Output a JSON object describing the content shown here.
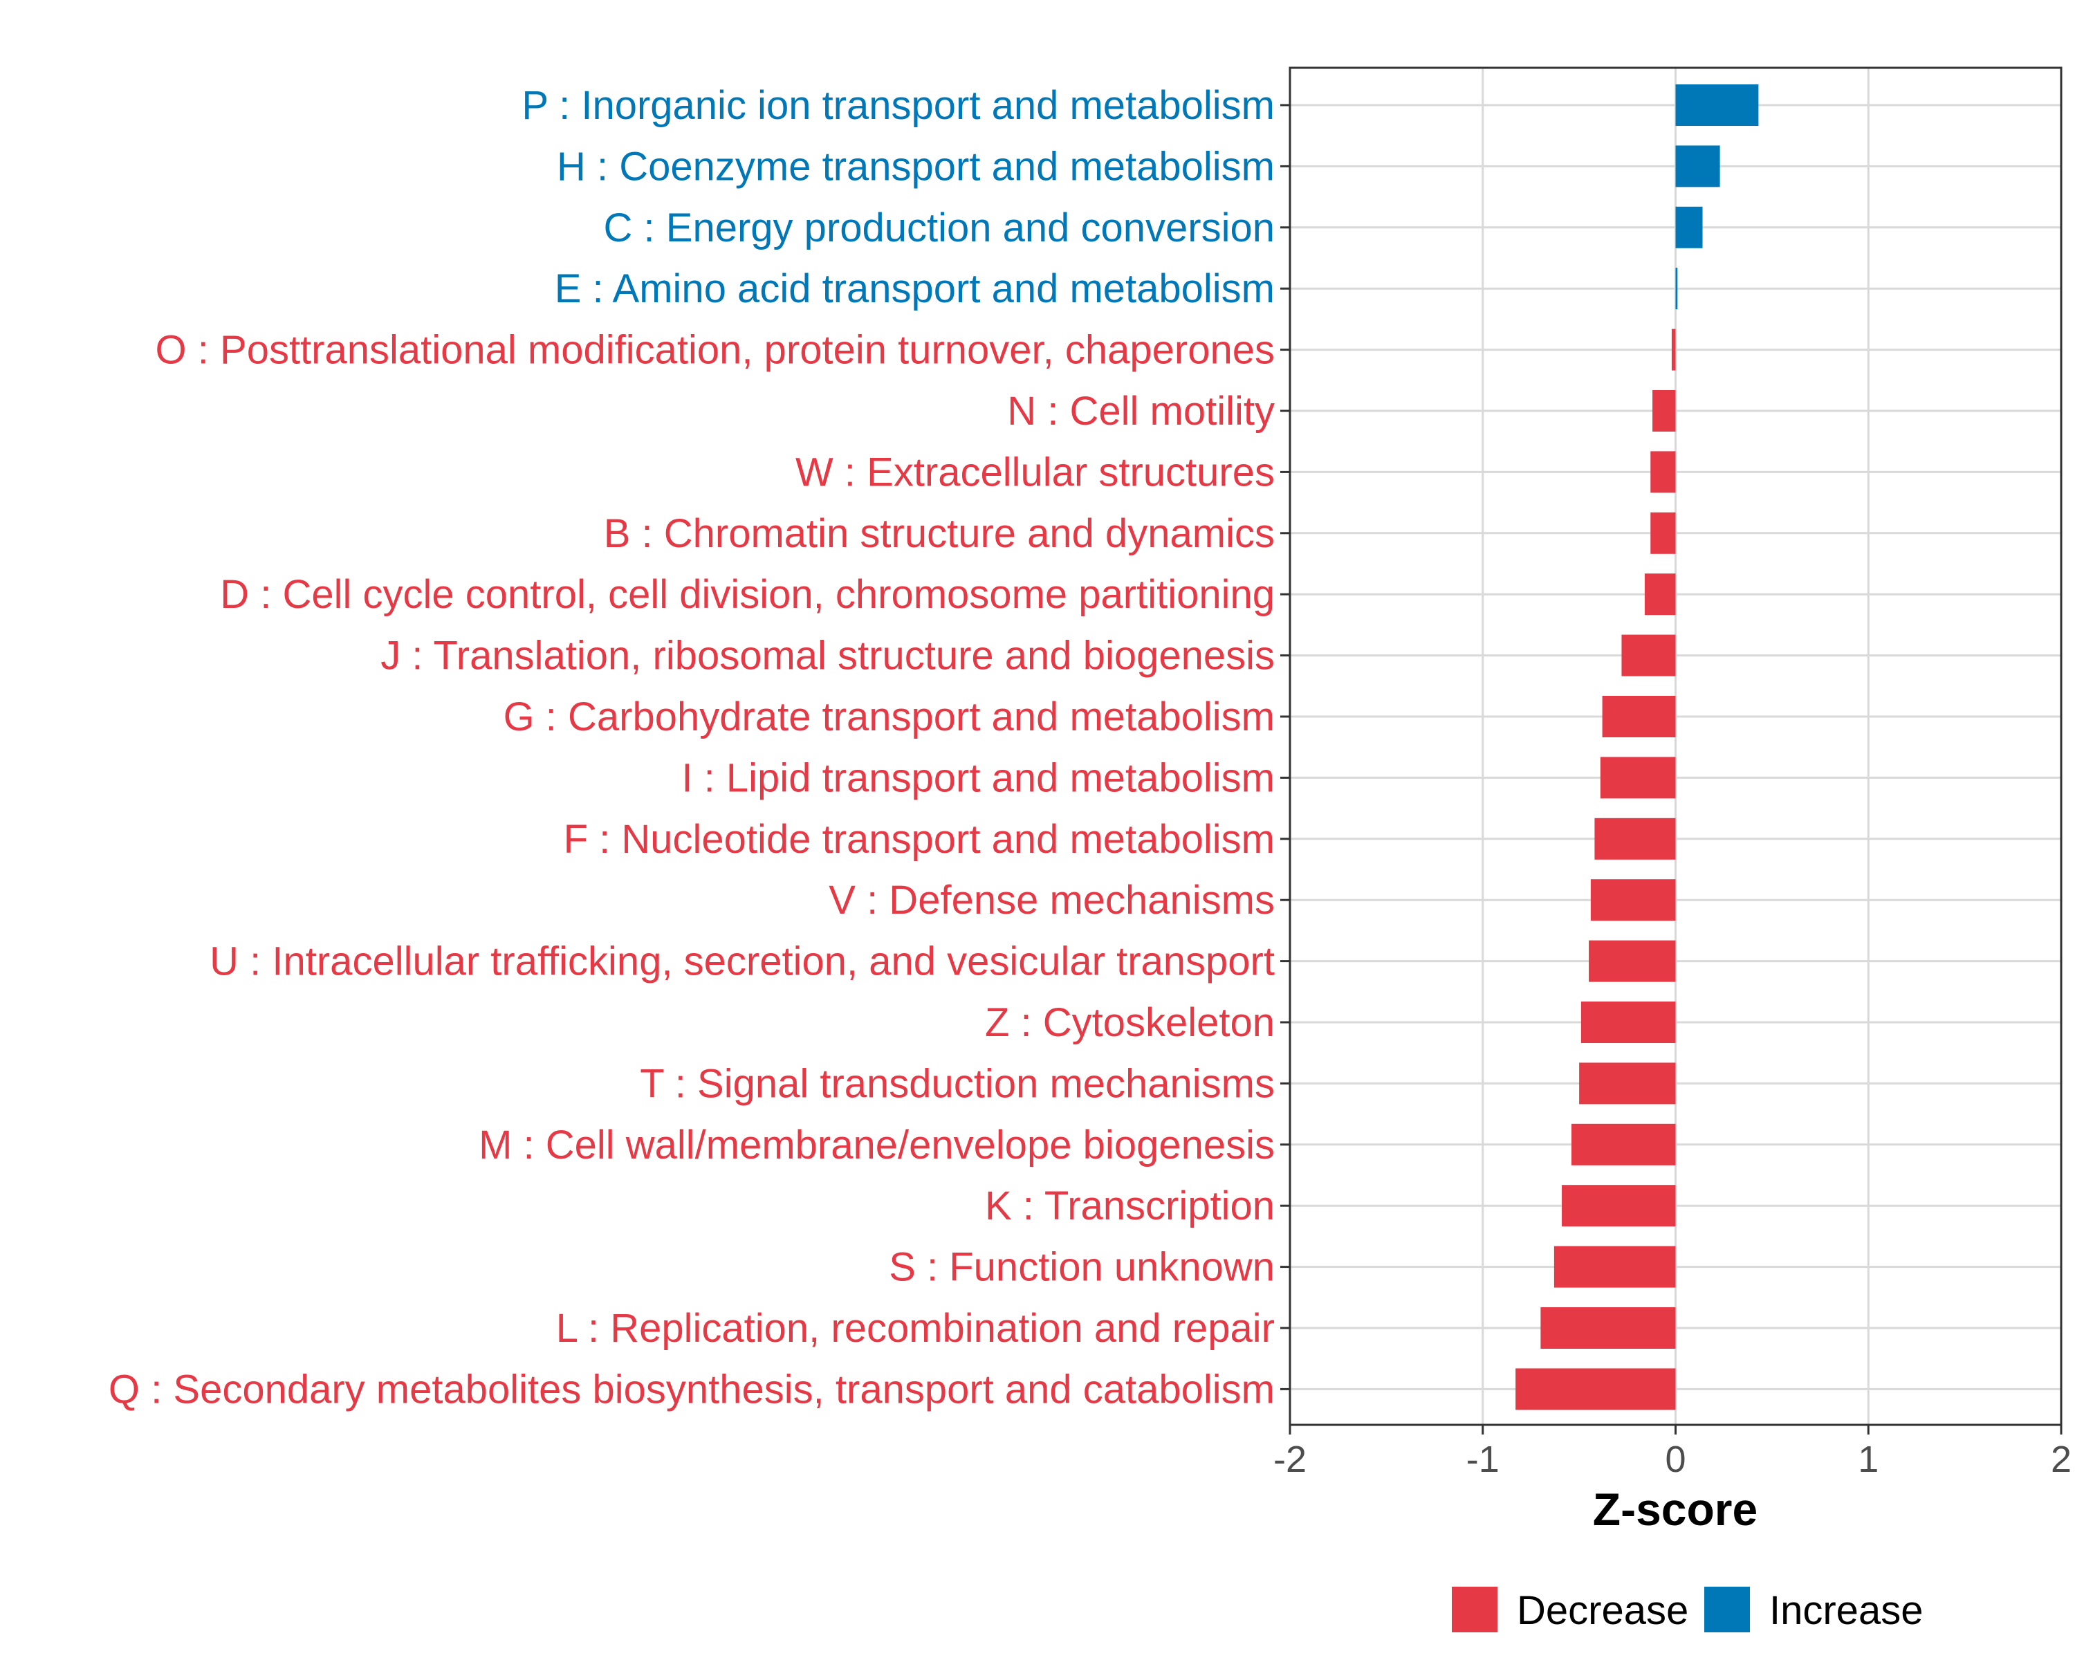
{
  "chart_data": {
    "type": "bar",
    "orientation": "horizontal",
    "xlabel": "Z-score",
    "xlim": [
      -2,
      2
    ],
    "xticks": [
      -2,
      -1,
      0,
      1,
      2
    ],
    "xtick_labels": [
      "-2",
      "-1",
      "0",
      "1",
      "2"
    ],
    "grid": true,
    "categories": [
      "P : Inorganic ion transport and metabolism",
      "H : Coenzyme transport and metabolism",
      "C : Energy production and conversion",
      "E : Amino acid transport and metabolism",
      "O : Posttranslational modification, protein turnover, chaperones",
      "N : Cell motility",
      "W : Extracellular structures",
      "B : Chromatin structure and dynamics",
      "D : Cell cycle control, cell division, chromosome partitioning",
      "J : Translation, ribosomal structure and biogenesis",
      "G : Carbohydrate transport and metabolism",
      "I : Lipid transport and metabolism",
      "F : Nucleotide transport and metabolism",
      "V : Defense mechanisms",
      "U : Intracellular trafficking, secretion, and vesicular transport",
      "Z : Cytoskeleton",
      "T : Signal transduction mechanisms",
      "M : Cell wall/membrane/envelope biogenesis",
      "K : Transcription",
      "S : Function unknown",
      "L : Replication, recombination and repair",
      "Q : Secondary metabolites biosynthesis, transport and catabolism"
    ],
    "values": [
      0.43,
      0.23,
      0.14,
      0.01,
      -0.02,
      -0.12,
      -0.13,
      -0.13,
      -0.16,
      -0.28,
      -0.38,
      -0.39,
      -0.42,
      -0.44,
      -0.45,
      -0.49,
      -0.5,
      -0.54,
      -0.59,
      -0.63,
      -0.7,
      -0.83
    ],
    "groups": [
      "Increase",
      "Increase",
      "Increase",
      "Increase",
      "Decrease",
      "Decrease",
      "Decrease",
      "Decrease",
      "Decrease",
      "Decrease",
      "Decrease",
      "Decrease",
      "Decrease",
      "Decrease",
      "Decrease",
      "Decrease",
      "Decrease",
      "Decrease",
      "Decrease",
      "Decrease",
      "Decrease",
      "Decrease"
    ],
    "legend": {
      "position": "bottom",
      "items": [
        {
          "name": "Decrease",
          "color": "#E63946"
        },
        {
          "name": "Increase",
          "color": "#0077B6"
        }
      ]
    },
    "colors": {
      "Decrease": "#E63946",
      "Increase": "#0077B6"
    }
  }
}
